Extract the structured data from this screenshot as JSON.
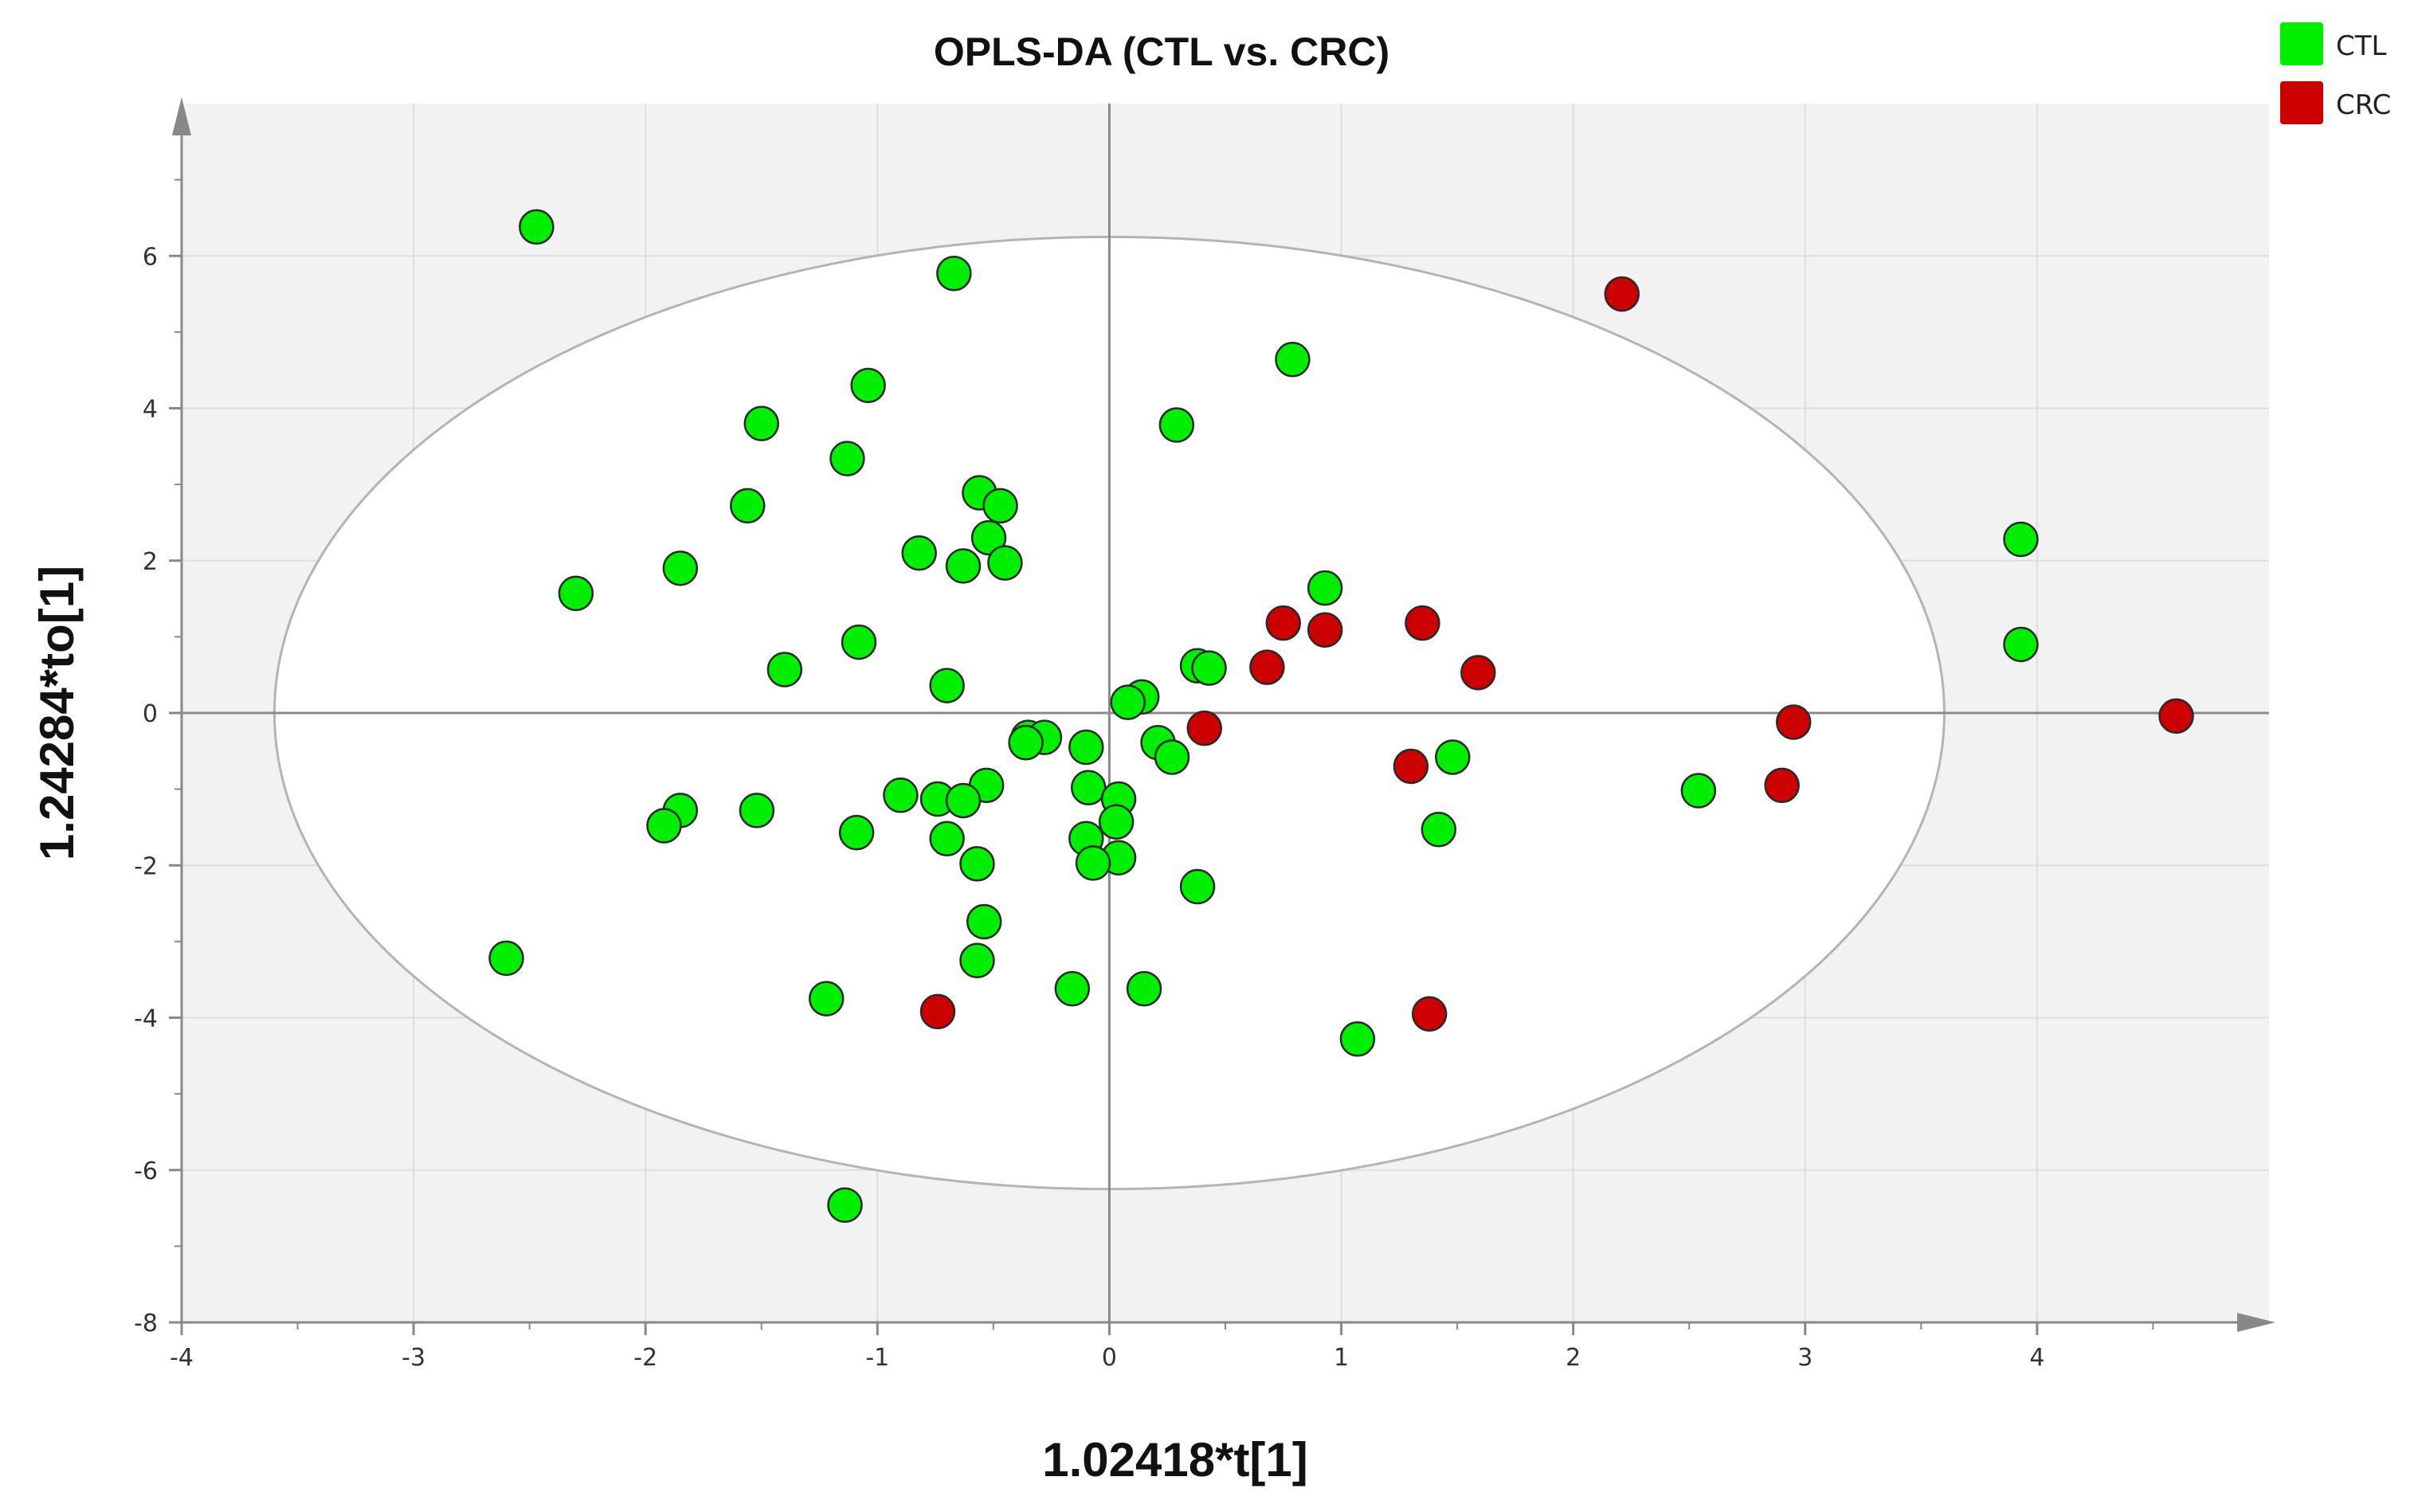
{
  "chart_data": {
    "type": "scatter",
    "title": "OPLS-DA (CTL vs. CRC)",
    "xlabel": "1.02418*t[1]",
    "ylabel": "1.24284*to[1]",
    "xlim": [
      -4,
      5
    ],
    "ylim": [
      -8,
      8
    ],
    "xticks": [
      -4,
      -3,
      -2,
      -1,
      0,
      1,
      2,
      3,
      4
    ],
    "xtick_labels": [
      "-4",
      "-3",
      "-2",
      "-1",
      "0",
      "1",
      "2",
      "3",
      "4"
    ],
    "yticks": [
      -8,
      -6,
      -4,
      -2,
      0,
      2,
      4,
      6
    ],
    "ytick_labels": [
      "-8",
      "-6",
      "-4",
      "-2",
      "0",
      "2",
      "4",
      "6"
    ],
    "grid": true,
    "legend_position": "top-right",
    "ellipse": {
      "center": [
        0,
        0
      ],
      "semi_axis_x": 3.6,
      "semi_axis_y": 6.25
    },
    "series": [
      {
        "name": "CTL",
        "color": "#00ee00",
        "points": [
          [
            -2.47,
            6.38
          ],
          [
            -0.67,
            5.77
          ],
          [
            0.79,
            4.64
          ],
          [
            -1.04,
            4.3
          ],
          [
            -1.5,
            3.8
          ],
          [
            0.29,
            3.78
          ],
          [
            -1.13,
            3.34
          ],
          [
            -0.56,
            2.89
          ],
          [
            -0.47,
            2.72
          ],
          [
            -1.56,
            2.72
          ],
          [
            -0.52,
            2.3
          ],
          [
            -0.82,
            2.1
          ],
          [
            -0.63,
            1.93
          ],
          [
            -0.45,
            1.97
          ],
          [
            -1.85,
            1.9
          ],
          [
            -2.3,
            1.57
          ],
          [
            3.93,
            2.28
          ],
          [
            0.93,
            1.64
          ],
          [
            -1.08,
            0.93
          ],
          [
            3.93,
            0.9
          ],
          [
            -1.4,
            0.57
          ],
          [
            0.38,
            0.62
          ],
          [
            0.43,
            0.59
          ],
          [
            -0.7,
            0.36
          ],
          [
            0.14,
            0.21
          ],
          [
            0.08,
            0.14
          ],
          [
            -0.35,
            -0.32
          ],
          [
            -0.28,
            -0.32
          ],
          [
            -0.1,
            -0.45
          ],
          [
            0.21,
            -0.39
          ],
          [
            0.27,
            -0.58
          ],
          [
            -0.36,
            -0.39
          ],
          [
            1.48,
            -0.58
          ],
          [
            -0.53,
            -0.95
          ],
          [
            -0.09,
            -0.98
          ],
          [
            -0.9,
            -1.08
          ],
          [
            -0.74,
            -1.13
          ],
          [
            -0.63,
            -1.15
          ],
          [
            2.54,
            -1.02
          ],
          [
            0.04,
            -1.13
          ],
          [
            -1.52,
            -1.28
          ],
          [
            -1.85,
            -1.28
          ],
          [
            -1.92,
            -1.48
          ],
          [
            0.03,
            -1.43
          ],
          [
            -1.09,
            -1.57
          ],
          [
            1.42,
            -1.53
          ],
          [
            -0.7,
            -1.65
          ],
          [
            -0.1,
            -1.65
          ],
          [
            0.04,
            -1.9
          ],
          [
            -0.07,
            -1.97
          ],
          [
            -0.57,
            -1.98
          ],
          [
            0.38,
            -2.28
          ],
          [
            -0.54,
            -2.74
          ],
          [
            -0.57,
            -3.25
          ],
          [
            -2.6,
            -3.22
          ],
          [
            -1.22,
            -3.75
          ],
          [
            -0.16,
            -3.62
          ],
          [
            0.15,
            -3.62
          ],
          [
            1.07,
            -4.28
          ],
          [
            -1.14,
            -6.46
          ]
        ]
      },
      {
        "name": "CRC",
        "color": "#cc0000",
        "points": [
          [
            2.21,
            5.5
          ],
          [
            0.75,
            1.18
          ],
          [
            0.93,
            1.09
          ],
          [
            1.35,
            1.18
          ],
          [
            1.59,
            0.53
          ],
          [
            0.68,
            0.6
          ],
          [
            0.41,
            -0.2
          ],
          [
            2.95,
            -0.12
          ],
          [
            4.6,
            -0.04
          ],
          [
            1.3,
            -0.7
          ],
          [
            2.9,
            -0.95
          ],
          [
            -0.74,
            -3.92
          ],
          [
            1.38,
            -3.95
          ]
        ]
      }
    ]
  }
}
